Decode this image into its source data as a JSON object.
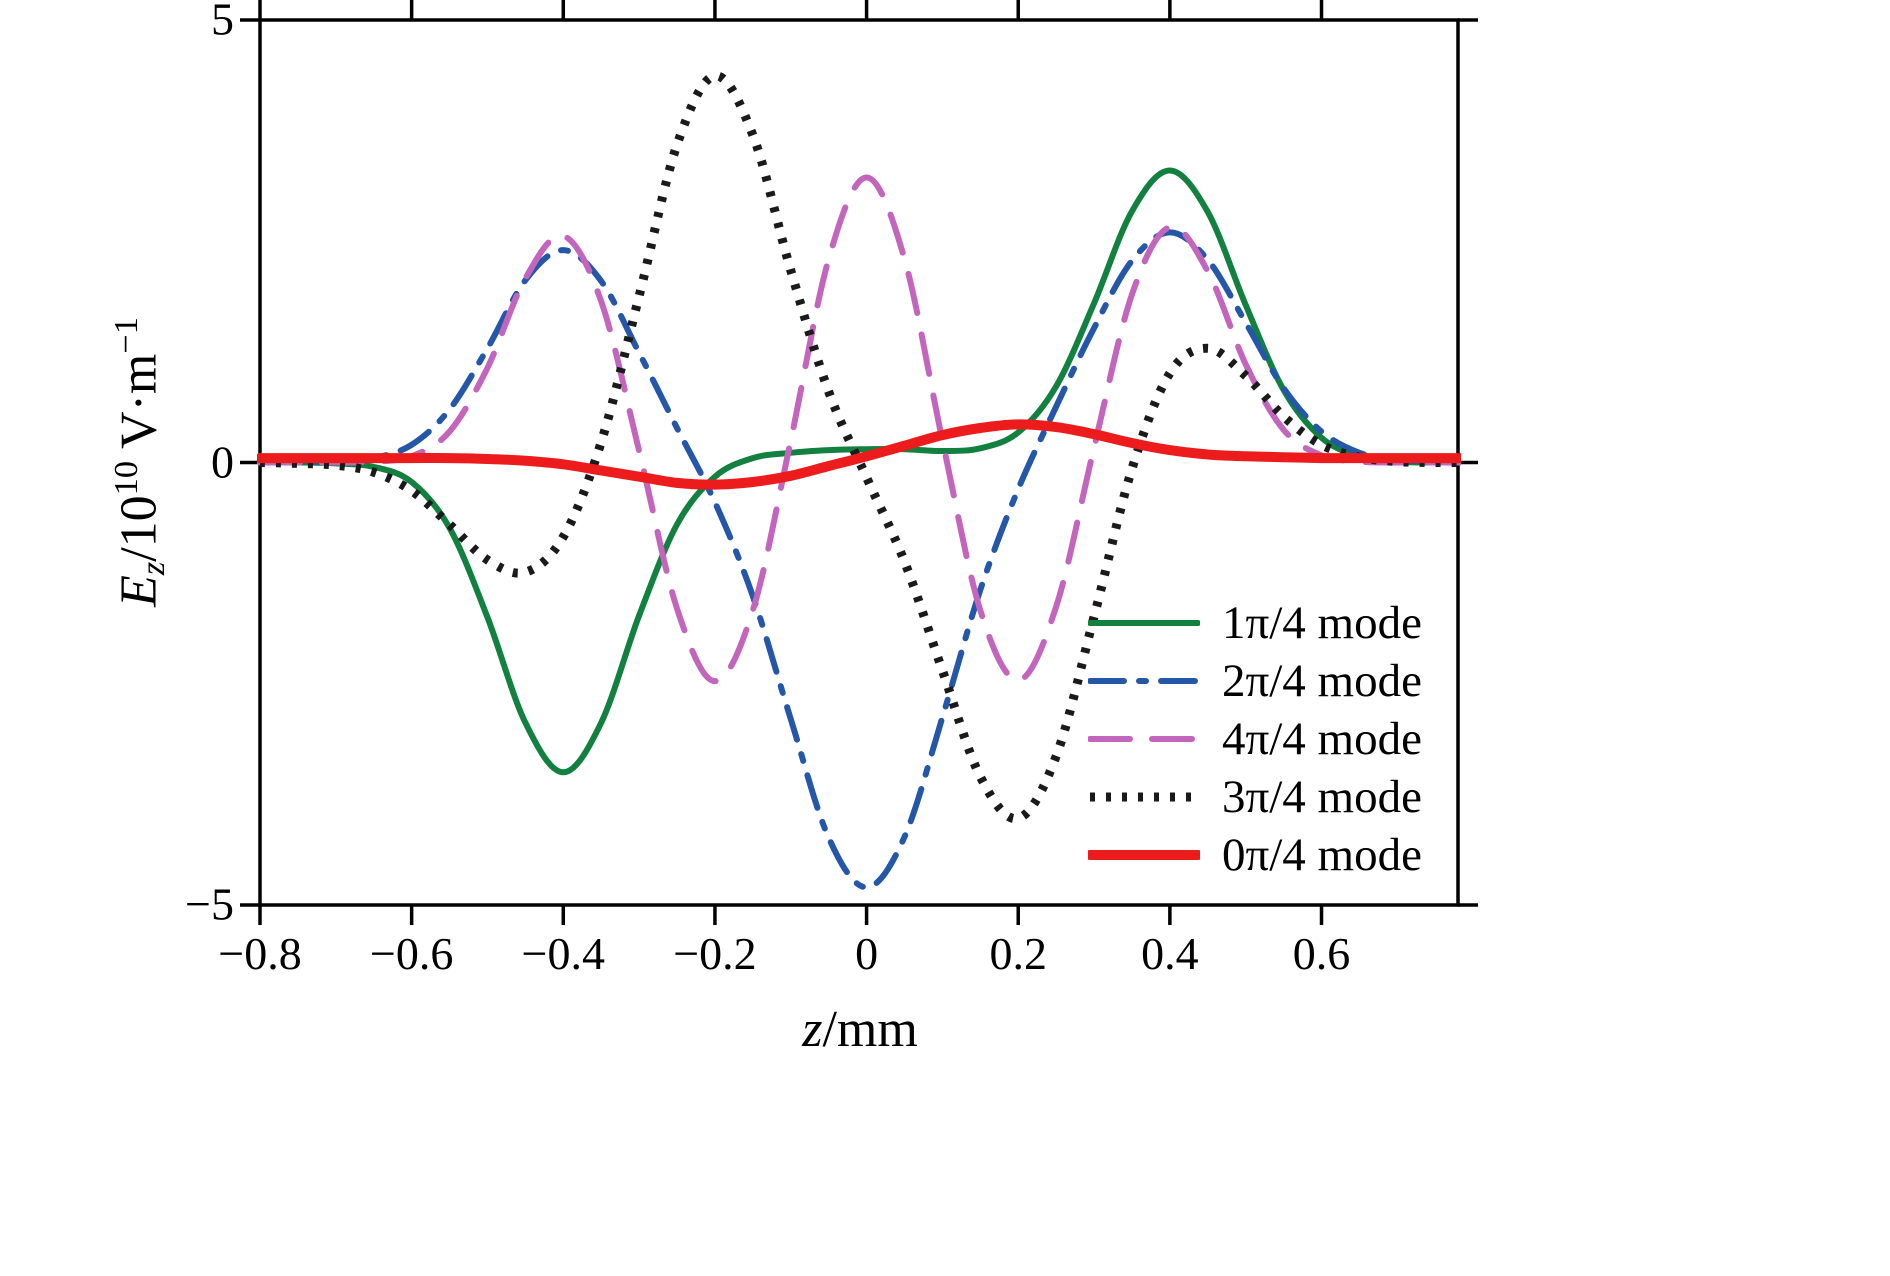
{
  "figure": {
    "background": "#ffffff",
    "axis_color": "#000000"
  },
  "axis": {
    "xlabel_parts": {
      "var": "z",
      "rest": "/mm"
    },
    "ylabel_parts": {
      "var": "E",
      "var_sub": "z",
      "mid": "/10",
      "exp": "10",
      "unit": " V·m",
      "unit_exp": "−1"
    }
  },
  "chart_data": {
    "type": "line",
    "title": "",
    "xlabel": "z/mm",
    "ylabel": "Ez/10^10 V·m^−1",
    "xlim": [
      -0.8,
      0.78
    ],
    "ylim": [
      -5,
      5
    ],
    "grid": false,
    "legend_position": "inside-bottom-right",
    "legend_border": "none",
    "xticks": [
      -0.8,
      -0.6,
      -0.4,
      -0.2,
      0,
      0.2,
      0.4,
      0.6
    ],
    "xtick_labels": [
      "−0.8",
      "−0.6",
      "−0.4",
      "−0.2",
      "0",
      "0.2",
      "0.4",
      "0.6"
    ],
    "yticks": [
      -5,
      0,
      5
    ],
    "ytick_labels": [
      "−5",
      "0",
      "5"
    ],
    "x": [
      -0.8,
      -0.75,
      -0.7,
      -0.65,
      -0.6,
      -0.55,
      -0.5,
      -0.45,
      -0.4,
      -0.35,
      -0.3,
      -0.25,
      -0.2,
      -0.15,
      -0.1,
      -0.05,
      0,
      0.05,
      0.1,
      0.15,
      0.2,
      0.25,
      0.3,
      0.35,
      0.4,
      0.45,
      0.5,
      0.55,
      0.6,
      0.65,
      0.7,
      0.75,
      0.8
    ],
    "series": [
      {
        "name": "1π/4 mode",
        "color": "#12813f",
        "style": "solid",
        "width": 6,
        "values": [
          0,
          0,
          -0.01,
          -0.05,
          -0.22,
          -0.74,
          -1.75,
          -2.94,
          -3.5,
          -2.94,
          -1.73,
          -0.7,
          -0.16,
          0.05,
          0.11,
          0.14,
          0.15,
          0.15,
          0.13,
          0.16,
          0.34,
          0.86,
          1.8,
          2.84,
          3.3,
          2.83,
          1.78,
          0.82,
          0.28,
          0.07,
          0.01,
          0,
          0
        ]
      },
      {
        "name": "2π/4 mode",
        "color": "#2457a7",
        "style": "dashdot",
        "width": 6,
        "values": [
          0,
          0,
          0.01,
          0.05,
          0.2,
          0.6,
          1.29,
          2.06,
          2.4,
          2.05,
          1.24,
          0.39,
          -0.45,
          -1.51,
          -2.9,
          -4.24,
          -4.8,
          -4.23,
          -2.88,
          -1.44,
          -0.3,
          0.63,
          1.52,
          2.28,
          2.6,
          2.29,
          1.58,
          0.84,
          0.35,
          0.11,
          0.03,
          0.01,
          0
        ]
      },
      {
        "name": "4π/4 mode",
        "color": "#c365bd",
        "style": "dashed",
        "width": 6,
        "values": [
          0,
          0,
          0,
          0.01,
          0.07,
          0.35,
          1.07,
          2.08,
          2.56,
          1.82,
          0.13,
          -1.65,
          -2.47,
          -1.67,
          0.25,
          2.3,
          3.22,
          2.3,
          0.25,
          -1.67,
          -2.46,
          -1.63,
          0.17,
          1.9,
          2.66,
          2.16,
          1.11,
          0.37,
          0.08,
          0.01,
          0,
          0,
          0
        ]
      },
      {
        "name": "3π/4 mode",
        "color": "#1a1a1a",
        "style": "dotted",
        "width": 9,
        "values": [
          0,
          -0.01,
          -0.03,
          -0.11,
          -0.32,
          -0.7,
          -1.1,
          -1.24,
          -0.84,
          0.23,
          1.88,
          3.59,
          4.37,
          3.7,
          2.17,
          0.8,
          -0.17,
          -1.12,
          -2.35,
          -3.55,
          -4.02,
          -3.32,
          -1.74,
          -0.07,
          1.01,
          1.29,
          0.98,
          0.52,
          0.2,
          0.06,
          0.01,
          0,
          0
        ]
      },
      {
        "name": "0π/4 mode",
        "color": "#ec1c1c",
        "style": "solid",
        "width": 10,
        "values": [
          0.05,
          0.05,
          0.05,
          0.05,
          0.05,
          0.05,
          0.04,
          0.02,
          -0.02,
          -0.09,
          -0.16,
          -0.23,
          -0.25,
          -0.22,
          -0.15,
          -0.04,
          0.07,
          0.19,
          0.31,
          0.39,
          0.43,
          0.4,
          0.32,
          0.22,
          0.14,
          0.09,
          0.07,
          0.06,
          0.05,
          0.05,
          0.05,
          0.05,
          0.05
        ]
      }
    ]
  }
}
